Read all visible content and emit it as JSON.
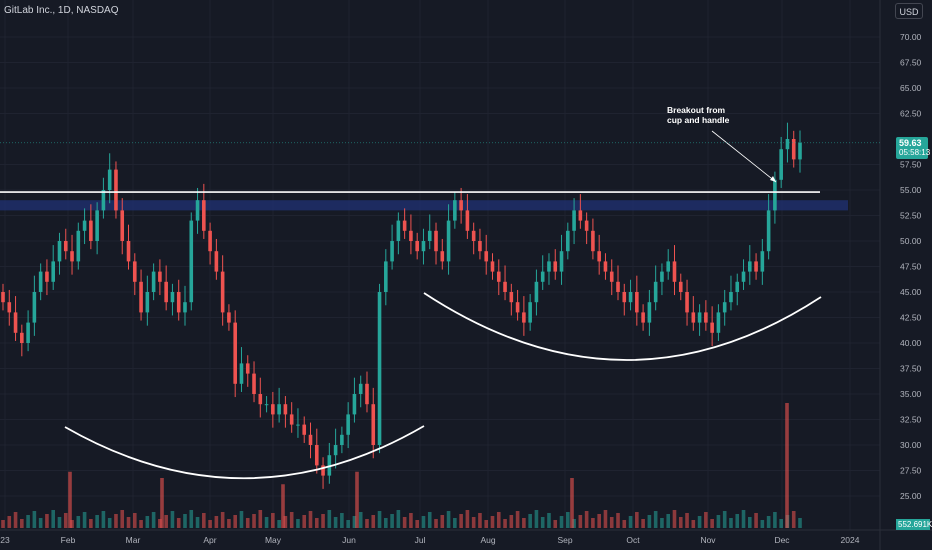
{
  "header": {
    "title": "GitLab Inc., 1D, NASDAQ",
    "currency": "USD"
  },
  "price_label": {
    "value": "59.63",
    "countdown": "05:58:13"
  },
  "volume_label": {
    "value": "552.691K"
  },
  "annotation": {
    "line1": "Breakout from",
    "line2": "cup and handle"
  },
  "colors": {
    "up": "#26a69a",
    "down": "#ef5350",
    "background": "#161a25",
    "zone": "#1f2f6b",
    "drawing": "#ffffff"
  },
  "chart_data": {
    "type": "candlestick",
    "title": "GitLab Inc., 1D, NASDAQ",
    "ylim": [
      22.5,
      72.5
    ],
    "y_ticks": [
      25.0,
      27.5,
      30.0,
      32.5,
      35.0,
      37.5,
      40.0,
      42.5,
      45.0,
      47.5,
      50.0,
      52.5,
      55.0,
      57.5,
      62.5,
      65.0,
      67.5,
      70.0
    ],
    "x_ticks": [
      "23",
      "Feb",
      "Mar",
      "Apr",
      "May",
      "Jun",
      "Jul",
      "Aug",
      "Sep",
      "Oct",
      "Nov",
      "Dec",
      "2024"
    ],
    "series": [
      {
        "name": "",
        "close_values": [
          44,
          43,
          41,
          40,
          42,
          45,
          47,
          46,
          48,
          50,
          49,
          48,
          51,
          52,
          50,
          53,
          55,
          57,
          53,
          50,
          48,
          46,
          43,
          45,
          47,
          46,
          44,
          45,
          43,
          44,
          52,
          54,
          51,
          49,
          47,
          43,
          42,
          36,
          38,
          37,
          35,
          34,
          34,
          33,
          34,
          33,
          32,
          32,
          31,
          30,
          28,
          27,
          29,
          30,
          31,
          33,
          35,
          36,
          34,
          30,
          45,
          48,
          50,
          52,
          51,
          50,
          49,
          50,
          51,
          49,
          48,
          52,
          54,
          53,
          51,
          50,
          49,
          48,
          47,
          46,
          45,
          44,
          43,
          42,
          44,
          46,
          47,
          48,
          47,
          49,
          51,
          53,
          52,
          51,
          49,
          48,
          47,
          46,
          45,
          44,
          45,
          43,
          42,
          44,
          46,
          47,
          48,
          46,
          45,
          43,
          42,
          43,
          42,
          41,
          43,
          44,
          45,
          46,
          47,
          48,
          47,
          49,
          53,
          56,
          59,
          60,
          58,
          59.63
        ]
      }
    ],
    "volume_spikes": [
      {
        "x": "Feb",
        "value_rel": 0.45
      },
      {
        "x": "Mar",
        "value_rel": 0.4
      },
      {
        "x": "May",
        "value_rel": 0.35
      },
      {
        "x": "Jun",
        "value_rel": 0.45
      },
      {
        "x": "Sep",
        "value_rel": 0.4
      },
      {
        "x": "Dec",
        "value_rel": 1.0
      }
    ],
    "drawings": {
      "resistance_line": 54.8,
      "resistance_zone": [
        53.0,
        54.0
      ]
    }
  }
}
